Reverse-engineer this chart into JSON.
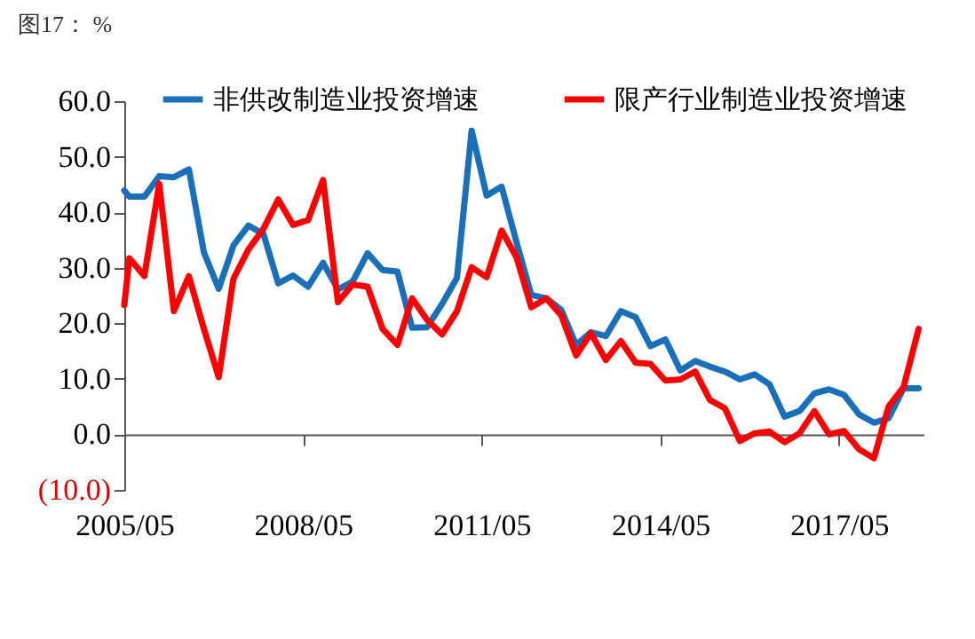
{
  "chart_data": {
    "type": "line",
    "title": "图17：  %",
    "x": [
      "2005-05",
      "2005-06",
      "2005-09",
      "2005-12",
      "2006-03",
      "2006-06",
      "2006-09",
      "2006-12",
      "2007-03",
      "2007-06",
      "2007-09",
      "2007-12",
      "2008-03",
      "2008-06",
      "2008-09",
      "2008-12",
      "2009-03",
      "2009-06",
      "2009-09",
      "2009-12",
      "2010-03",
      "2010-06",
      "2010-09",
      "2010-12",
      "2011-03",
      "2011-06",
      "2011-09",
      "2011-12",
      "2012-03",
      "2012-06",
      "2012-09",
      "2012-12",
      "2013-03",
      "2013-06",
      "2013-09",
      "2013-12",
      "2014-03",
      "2014-06",
      "2014-09",
      "2014-12",
      "2015-03",
      "2015-06",
      "2015-09",
      "2015-12",
      "2016-03",
      "2016-06",
      "2016-09",
      "2016-12",
      "2017-03",
      "2017-06",
      "2017-09",
      "2017-12",
      "2018-03",
      "2018-06",
      "2018-09"
    ],
    "series": [
      {
        "name": "非供改制造业投资增速",
        "color": "#1a6fba",
        "values": [
          43.9,
          42.8,
          42.8,
          46.5,
          46.3,
          47.7,
          32.8,
          26.2,
          34.0,
          37.6,
          36.1,
          27.2,
          28.6,
          26.6,
          30.9,
          26.1,
          27.5,
          32.6,
          29.6,
          29.3,
          19.2,
          19.3,
          23.5,
          28.2,
          54.7,
          43.0,
          44.6,
          34.6,
          25.1,
          24.5,
          22.4,
          16.1,
          18.4,
          17.7,
          22.2,
          21.1,
          15.9,
          17.1,
          11.5,
          13.2,
          12.2,
          11.3,
          9.9,
          10.8,
          9.0,
          3.2,
          4.2,
          7.4,
          8.1,
          7.1,
          3.6,
          2.1,
          2.9,
          8.3,
          8.3
        ]
      },
      {
        "name": "限产行业制造业投资增速",
        "color": "#ff0000",
        "values": [
          23.3,
          31.7,
          28.5,
          45.1,
          22.2,
          28.5,
          19.0,
          10.3,
          28.0,
          33.3,
          37.0,
          42.3,
          37.7,
          38.6,
          45.8,
          23.8,
          27.0,
          26.6,
          19.0,
          16.1,
          24.5,
          20.6,
          18.0,
          22.2,
          30.1,
          28.3,
          36.7,
          31.9,
          22.9,
          24.5,
          21.4,
          14.2,
          18.2,
          13.4,
          16.8,
          12.9,
          12.7,
          9.7,
          9.9,
          11.3,
          6.2,
          4.7,
          -1.2,
          0.2,
          0.5,
          -1.4,
          0.2,
          4.2,
          0.0,
          0.6,
          -2.7,
          -4.3,
          5.0,
          8.5,
          19.0
        ]
      }
    ],
    "xlim": [
      "2005-05",
      "2018-10"
    ],
    "xticks": [
      {
        "value": "2005-05",
        "label": "2005/05"
      },
      {
        "value": "2008-05",
        "label": "2008/05"
      },
      {
        "value": "2011-05",
        "label": "2011/05"
      },
      {
        "value": "2014-05",
        "label": "2014/05"
      },
      {
        "value": "2017-05",
        "label": "2017/05"
      }
    ],
    "ylim": [
      -10,
      60
    ],
    "yticks": [
      {
        "value": -10,
        "label": "(10.0)"
      },
      {
        "value": 0,
        "label": "0.0"
      },
      {
        "value": 10,
        "label": "10.0"
      },
      {
        "value": 20,
        "label": "20.0"
      },
      {
        "value": 30,
        "label": "30.0"
      },
      {
        "value": 40,
        "label": "40.0"
      },
      {
        "value": 50,
        "label": "50.0"
      },
      {
        "value": 60,
        "label": "60.0"
      }
    ],
    "grid": false,
    "legend": "top",
    "marker": "none",
    "line_style": "solid"
  }
}
